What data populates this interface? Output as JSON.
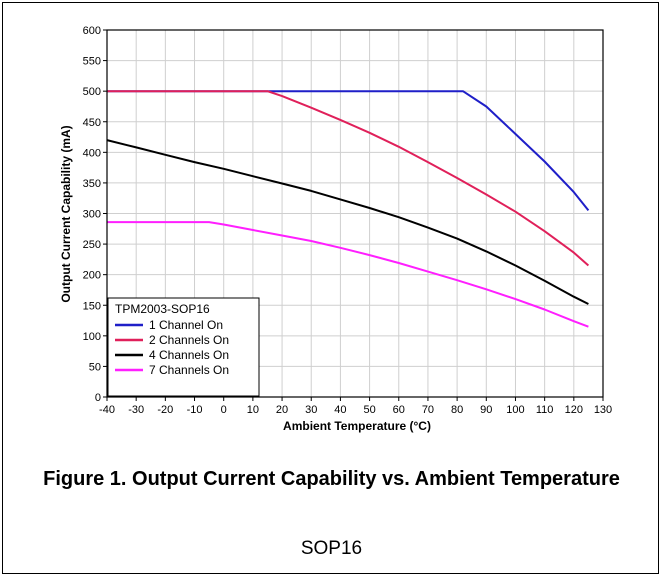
{
  "chart_data": {
    "type": "line",
    "title": "",
    "xlabel": "Ambient Temperature  (°C)",
    "ylabel": "Output Current Capability (mA)",
    "xlim": [
      -40,
      130
    ],
    "ylim": [
      0,
      600
    ],
    "xticks": [
      -40,
      -30,
      -20,
      -10,
      0,
      10,
      20,
      30,
      40,
      50,
      60,
      70,
      80,
      90,
      100,
      110,
      120,
      130
    ],
    "yticks": [
      0,
      50,
      100,
      150,
      200,
      250,
      300,
      350,
      400,
      450,
      500,
      550,
      600
    ],
    "grid": true,
    "legend": {
      "title": "TPM2003-SOP16",
      "placement": "bottom-left"
    },
    "series": [
      {
        "name": "1 Channel On",
        "color": "#1f1fc8",
        "x": [
          -40,
          82,
          90,
          100,
          110,
          120,
          125
        ],
        "y": [
          500,
          500,
          475,
          430,
          385,
          335,
          305
        ]
      },
      {
        "name": "2 Channels On",
        "color": "#e0205a",
        "x": [
          -40,
          15,
          20,
          30,
          40,
          50,
          60,
          70,
          80,
          90,
          100,
          110,
          120,
          125
        ],
        "y": [
          500,
          500,
          492,
          473,
          453,
          432,
          409,
          384,
          358,
          331,
          303,
          271,
          236,
          215
        ]
      },
      {
        "name": "4 Channels On",
        "color": "#000000",
        "x": [
          -40,
          -30,
          -20,
          -10,
          0,
          10,
          20,
          30,
          40,
          50,
          60,
          70,
          80,
          90,
          100,
          110,
          120,
          125
        ],
        "y": [
          420,
          408,
          396,
          384,
          373,
          361,
          349,
          337,
          323,
          309,
          294,
          277,
          259,
          238,
          215,
          190,
          164,
          152
        ]
      },
      {
        "name": "7 Channels On",
        "color": "#ff1fff",
        "x": [
          -40,
          -5,
          0,
          10,
          20,
          30,
          40,
          50,
          60,
          70,
          80,
          90,
          100,
          110,
          120,
          125
        ],
        "y": [
          286,
          286,
          282,
          273,
          264,
          255,
          244,
          232,
          219,
          205,
          191,
          176,
          160,
          143,
          124,
          115
        ]
      }
    ]
  },
  "caption": "Figure 1. Output Current Capability vs. Ambient Temperature",
  "package": "SOP16"
}
